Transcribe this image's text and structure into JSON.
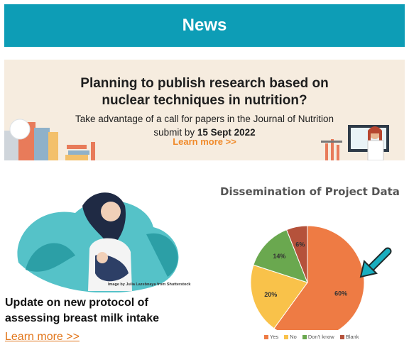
{
  "header": {
    "title": "News"
  },
  "banner": {
    "title_line1": "Planning to publish research based on",
    "title_line2": "nuclear techniques in nutrition?",
    "subtitle_line1": "Take advantage of a call for papers in the Journal of Nutrition",
    "subtitle_line2_prefix": "submit by ",
    "subtitle_line2_date": "15 Sept 2022",
    "learn_more": "Learn more >>"
  },
  "article": {
    "image_credit": "Image by Julia Lazebnaya from Shutterstock",
    "headline_line1": "Update on new protocol of",
    "headline_line2": "assessing breast milk intake",
    "learn_more": "Learn more >>"
  },
  "colors": {
    "header_bg": "#0d9db6",
    "accent": "#e2761b",
    "pie_yes": "#ee7b44",
    "pie_no": "#f9c24a",
    "pie_dont_know": "#6aa84f",
    "pie_blank": "#b5523b",
    "arrow": "#19aebf"
  },
  "chart_data": {
    "type": "pie",
    "title": "Dissemination of Project Data",
    "categories": [
      "Yes",
      "No",
      "Don't know",
      "Blank"
    ],
    "values": [
      60,
      20,
      14,
      6
    ],
    "labels": [
      "60%",
      "20%",
      "14%",
      "6%"
    ],
    "legend": "bottom"
  }
}
